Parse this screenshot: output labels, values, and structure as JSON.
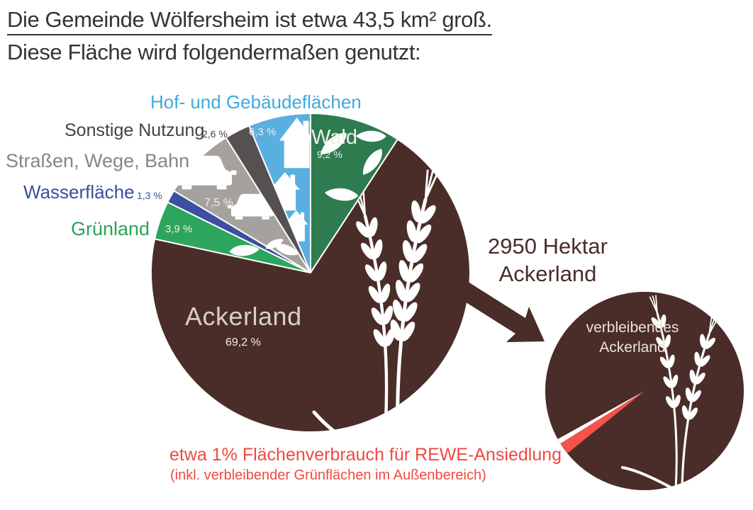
{
  "heading": {
    "line1": "Die Gemeinde Wölfersheim ist etwa 43,5 km² groß.",
    "line2": "Diese Fläche wird folgendermaßen genutzt:"
  },
  "chart_data": {
    "type": "pie",
    "title": "Die Gemeinde Wölfersheim ist etwa 43,5 km² groß. Diese Fläche wird folgendermaßen genutzt:",
    "total_area_label": "etwa 43,5 km²",
    "units": "%",
    "start_angle_deg": 0,
    "direction": "clockwise",
    "slices": [
      {
        "label": "Wald",
        "value": 9.2,
        "pct_label": "9,2 %",
        "color": "#2e7b4f"
      },
      {
        "label": "Ackerland",
        "value": 69.2,
        "pct_label": "69,2 %",
        "color": "#4a2d28"
      },
      {
        "label": "Grünland",
        "value": 3.9,
        "pct_label": "3,9 %",
        "color": "#2da55d"
      },
      {
        "label": "Wasserfläche",
        "value": 1.3,
        "pct_label": "1,3 %",
        "color": "#3d4fa0"
      },
      {
        "label": "Straßen, Wege, Bahn",
        "value": 7.5,
        "pct_label": "7,5 %",
        "color": "#a5a19d"
      },
      {
        "label": "Sonstige Nutzung",
        "value": 2.6,
        "pct_label": "2,6 %",
        "color": "#575050"
      },
      {
        "label": "Hof- und Gebäudeflächen",
        "value": 6.3,
        "pct_label": "6,3 %",
        "color": "#5aafe1"
      }
    ],
    "callout": {
      "line1": "2950 Hektar",
      "line2": "Ackerland"
    },
    "small_pie": {
      "line1": "verbleibendes",
      "line2": "Ackerland",
      "highlight_value_pct": 1,
      "highlight_color": "#f4524b",
      "base_color": "#4a2d28"
    },
    "note": {
      "line1": "etwa 1% Flächenverbrauch für REWE-Ansiedlung",
      "line2": "(inkl. verbleibender Grünflächen im Außenbereich)"
    }
  },
  "colors": {
    "background": "#ffffff",
    "heading_text": "#383332",
    "label_hof": "#3fa9e0",
    "label_sonstige": "#474140",
    "label_strassen": "#8a8580",
    "label_wasser": "#3a4d9e",
    "label_gruen": "#2aa25b",
    "slice_text_light": "#f2ede7",
    "acker_text": "#d9cfc5",
    "callout_brown": "#4a2d28",
    "note_red": "#f1493f",
    "sliver_red": "#f4524b",
    "small_circle_text": "#ece3d9"
  }
}
